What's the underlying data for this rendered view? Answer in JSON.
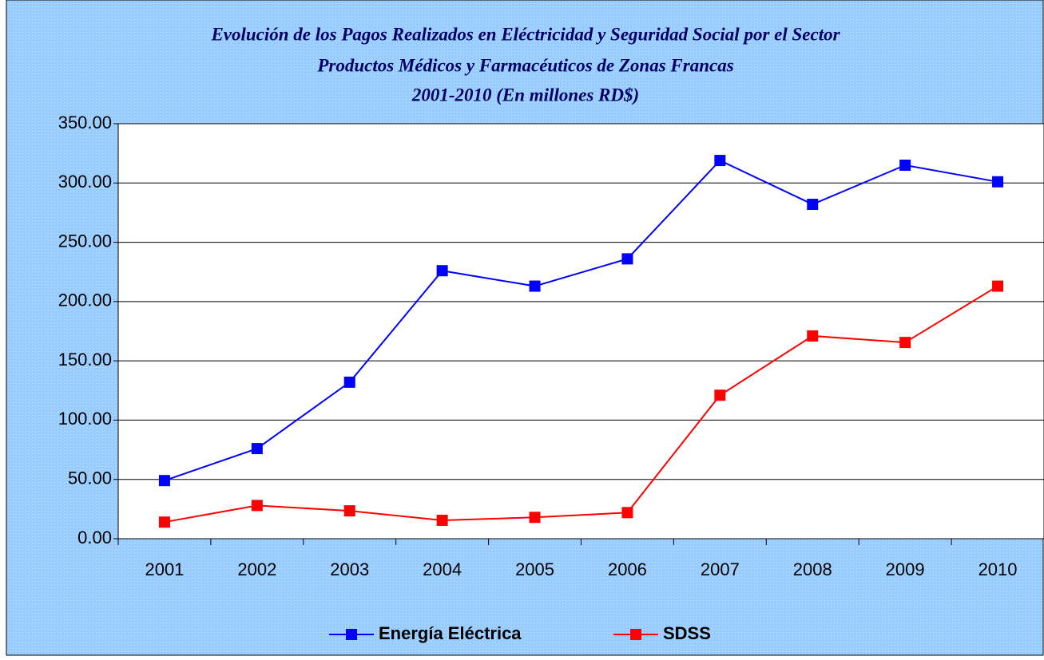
{
  "chart_data": {
    "type": "line",
    "title": [
      "Evolución de los Pagos Realizados en Eléctricidad y Seguridad Social por el Sector",
      "Productos Médicos y Farmacéuticos de Zonas Francas",
      "2001-2010 (En millones RD$)"
    ],
    "categories": [
      "2001",
      "2002",
      "2003",
      "2004",
      "2005",
      "2006",
      "2007",
      "2008",
      "2009",
      "2010"
    ],
    "series": [
      {
        "name": "Energía Eléctrica",
        "color": "#0000ff",
        "values": [
          49,
          76,
          132,
          226,
          213,
          236,
          319,
          282,
          315,
          301
        ]
      },
      {
        "name": "SDSS",
        "color": "#ff0000",
        "values": [
          14,
          28,
          23.5,
          15.5,
          18,
          22,
          121,
          171,
          165.5,
          213
        ]
      }
    ],
    "ylim": [
      0,
      350
    ],
    "yticks": [
      {
        "value": 0,
        "label": "0.00"
      },
      {
        "value": 50,
        "label": "50.00"
      },
      {
        "value": 100,
        "label": "100.00"
      },
      {
        "value": 150,
        "label": "150.00"
      },
      {
        "value": 200,
        "label": "200.00"
      },
      {
        "value": 250,
        "label": "250.00"
      },
      {
        "value": 300,
        "label": "300.00"
      },
      {
        "value": 350,
        "label": "350.00"
      }
    ],
    "grid": true,
    "legend": "bottom"
  }
}
